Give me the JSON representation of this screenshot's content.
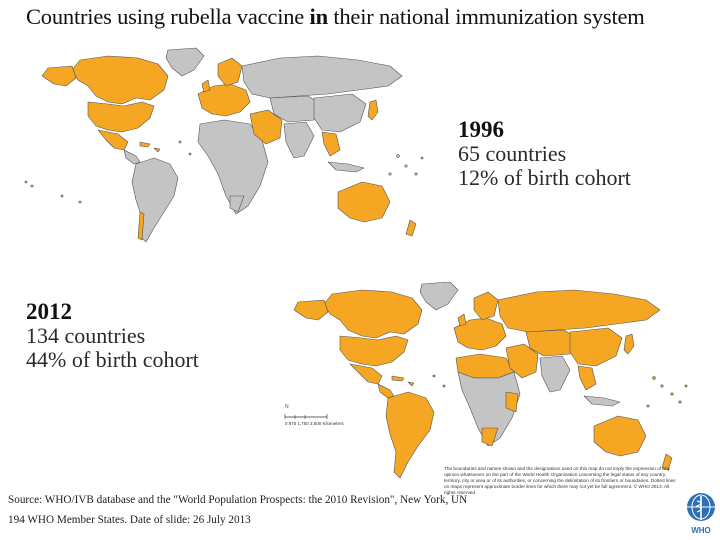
{
  "title": {
    "part1": "Countries using rubella vaccine ",
    "bold": "in",
    "part2": " their national immunization system"
  },
  "panels": [
    {
      "year": "1996",
      "countries": "65 countries",
      "cohort": "12% of birth cohort"
    },
    {
      "year": "2012",
      "countries": "134 countries",
      "cohort": "44% of birth cohort"
    }
  ],
  "scale": {
    "label": "0   875 1,750       3,500 Kilometers"
  },
  "source": {
    "line1": "Source: WHO/IVB  database and the \"World Population Prospects: the 2010  Revision\", New York, UN",
    "line2": "194  WHO  Member States. Date of slide: 26 July 2013"
  },
  "disclaimer": "The boundaries and names shown and the designations used on this map do not imply the expression of any opinion whatsoever on the part of the World Health Organization concerning the legal status of any country, territory, city or area or of its authorities, or concerning the delimitation of its frontiers or boundaries. Dotted lines on maps represent approximate border lines for which there may not yet be full agreement. © WHO 2013. All rights reserved.",
  "logo_text": "WHO",
  "colors": {
    "introduced": "#f5a623",
    "not_introduced": "#c4c4c4",
    "border": "#555555"
  }
}
